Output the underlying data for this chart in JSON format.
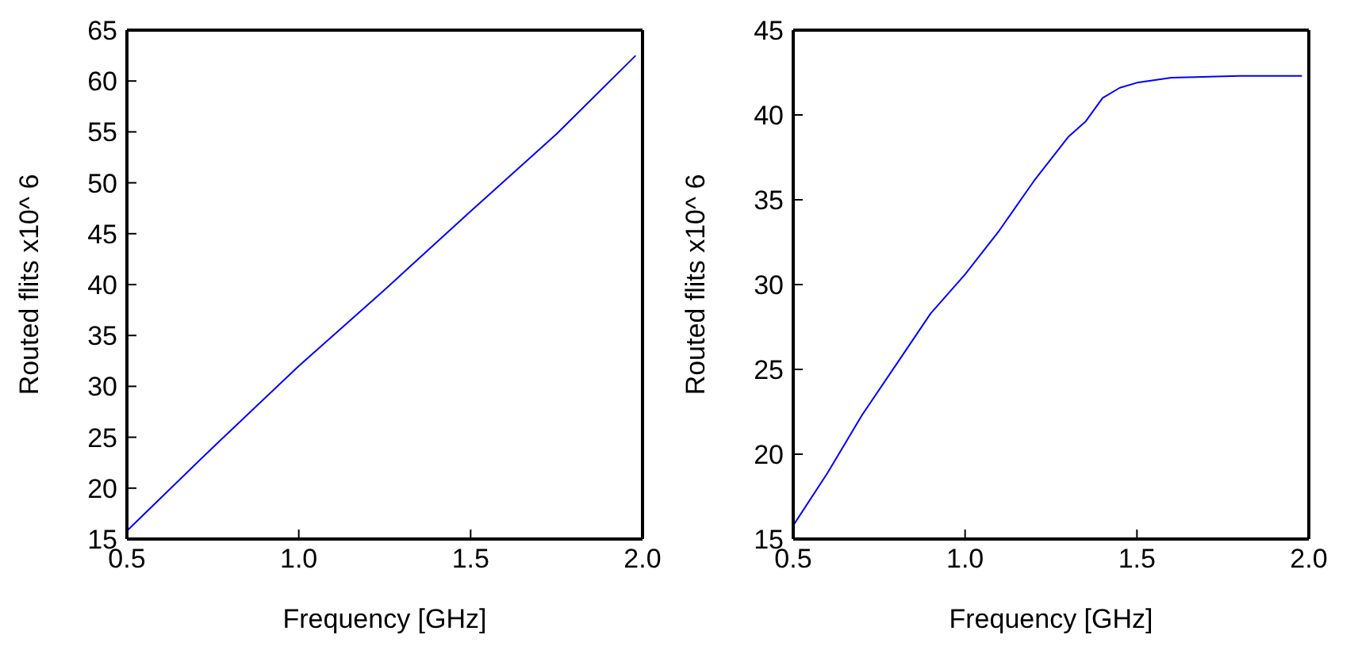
{
  "chart_data": [
    {
      "type": "line",
      "xlabel": "Frequency [GHz]",
      "ylabel": "Routed flits x10^ 6",
      "xlim": [
        0.5,
        2.0
      ],
      "xticks": [
        {
          "value": 0.5,
          "label": "0.5"
        },
        {
          "value": 1.0,
          "label": "1.0"
        },
        {
          "value": 1.5,
          "label": "1.5"
        },
        {
          "value": 2.0,
          "label": "2.0"
        }
      ],
      "ylim": [
        15,
        65
      ],
      "yticks": [
        15,
        20,
        25,
        30,
        35,
        40,
        45,
        50,
        55,
        60,
        65
      ],
      "marker": "none",
      "line_style": "solid",
      "series": [
        {
          "color": "#0000ff",
          "x": [
            0.5,
            0.75,
            1.0,
            1.25,
            1.5,
            1.75,
            1.98
          ],
          "values": [
            15.8,
            24,
            32,
            39.5,
            47.2,
            54.8,
            62.5
          ]
        }
      ]
    },
    {
      "type": "line",
      "xlabel": "Frequency [GHz]",
      "ylabel": "Routed flits x10^ 6",
      "xlim": [
        0.5,
        2.0
      ],
      "xticks": [
        {
          "value": 0.5,
          "label": "0.5"
        },
        {
          "value": 1.0,
          "label": "1.0"
        },
        {
          "value": 1.5,
          "label": "1.5"
        },
        {
          "value": 2.0,
          "label": "2.0"
        }
      ],
      "ylim": [
        15,
        45
      ],
      "yticks": [
        15,
        20,
        25,
        30,
        35,
        40,
        45
      ],
      "marker": "none",
      "line_style": "solid",
      "series": [
        {
          "color": "#0000ff",
          "x": [
            0.5,
            0.6,
            0.7,
            0.8,
            0.9,
            1.0,
            1.1,
            1.2,
            1.3,
            1.35,
            1.4,
            1.45,
            1.5,
            1.6,
            1.8,
            1.98
          ],
          "values": [
            15.8,
            18.9,
            22.3,
            25.3,
            28.3,
            30.6,
            33.2,
            36.1,
            38.7,
            39.6,
            41.0,
            41.6,
            41.9,
            42.2,
            42.3,
            42.3
          ]
        }
      ]
    }
  ]
}
